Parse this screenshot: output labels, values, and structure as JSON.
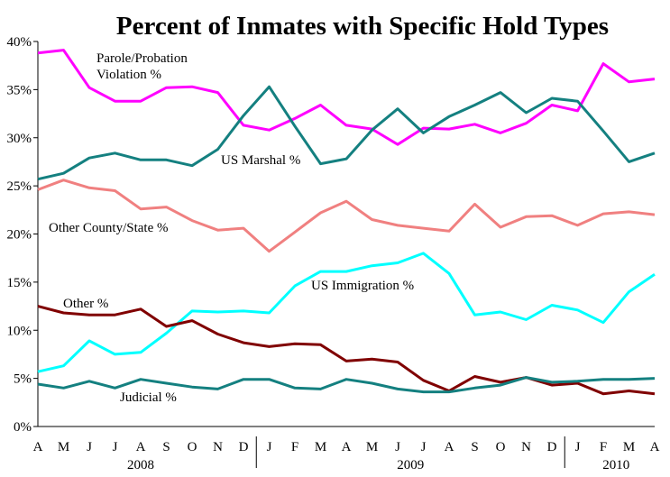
{
  "chart_data": {
    "type": "line",
    "title": "Percent of Inmates with Specific Hold Types",
    "xlabel": "",
    "ylabel": "",
    "ylim": [
      0,
      40
    ],
    "yticks": [
      "0%",
      "5%",
      "10%",
      "15%",
      "20%",
      "25%",
      "30%",
      "35%",
      "40%"
    ],
    "x": [
      "A",
      "M",
      "J",
      "J",
      "A",
      "S",
      "O",
      "N",
      "D",
      "J",
      "F",
      "M",
      "A",
      "M",
      "J",
      "J",
      "A",
      "S",
      "O",
      "N",
      "D",
      "J",
      "F",
      "M",
      "A"
    ],
    "years": [
      "2008",
      "2009",
      "2010"
    ],
    "grid": false,
    "series": [
      {
        "name": "Parole/Probation Violation %",
        "label_lines": [
          "Parole/Probation",
          "Violation %"
        ],
        "color": "#ff00ff",
        "values": [
          38.8,
          39.1,
          35.2,
          33.8,
          33.8,
          35.2,
          35.3,
          34.7,
          31.3,
          30.8,
          32.0,
          33.4,
          31.3,
          30.9,
          29.3,
          31.0,
          30.9,
          31.4,
          30.5,
          31.5,
          33.4,
          32.8,
          37.7,
          35.8,
          36.1
        ]
      },
      {
        "name": "US Marshal %",
        "label_lines": [
          "US Marshal %"
        ],
        "color": "#148080",
        "values": [
          25.7,
          26.3,
          27.9,
          28.4,
          27.7,
          27.7,
          27.1,
          28.8,
          32.3,
          35.3,
          31.2,
          27.3,
          27.8,
          30.8,
          33.0,
          30.5,
          32.2,
          33.4,
          34.7,
          32.6,
          34.1,
          33.8,
          30.7,
          27.5,
          28.4
        ]
      },
      {
        "name": "Other County/State %",
        "label_lines": [
          "Other County/State %"
        ],
        "color": "#f08080",
        "values": [
          24.6,
          25.6,
          24.8,
          24.5,
          22.6,
          22.8,
          21.4,
          20.4,
          20.6,
          18.2,
          20.2,
          22.2,
          23.4,
          21.5,
          20.9,
          20.6,
          20.3,
          23.1,
          20.7,
          21.8,
          21.9,
          20.9,
          22.1,
          22.3,
          22.0
        ]
      },
      {
        "name": "US Immigration %",
        "label_lines": [
          "US Immigration %"
        ],
        "color": "#00ffff",
        "values": [
          5.7,
          6.3,
          8.9,
          7.5,
          7.7,
          9.7,
          12.0,
          11.9,
          12.0,
          11.8,
          14.6,
          16.1,
          16.1,
          16.7,
          17.0,
          18.0,
          15.9,
          11.6,
          11.9,
          11.1,
          12.6,
          12.1,
          10.8,
          14.0,
          15.8
        ]
      },
      {
        "name": "Other %",
        "label_lines": [
          "Other %"
        ],
        "color": "#800000",
        "values": [
          12.5,
          11.8,
          11.6,
          11.6,
          12.2,
          10.4,
          11.0,
          9.6,
          8.7,
          8.3,
          8.6,
          8.5,
          6.8,
          7.0,
          6.7,
          4.8,
          3.7,
          5.2,
          4.6,
          5.1,
          4.3,
          4.5,
          3.4,
          3.7,
          3.4
        ]
      },
      {
        "name": "Judicial %",
        "label_lines": [
          "Judicial %"
        ],
        "color": "#148080",
        "values": [
          4.4,
          4.0,
          4.7,
          4.0,
          4.9,
          4.5,
          4.1,
          3.9,
          4.9,
          4.9,
          4.0,
          3.9,
          4.9,
          4.5,
          3.9,
          3.6,
          3.6,
          4.0,
          4.3,
          5.1,
          4.6,
          4.7,
          4.9,
          4.9,
          5.0
        ]
      }
    ]
  }
}
